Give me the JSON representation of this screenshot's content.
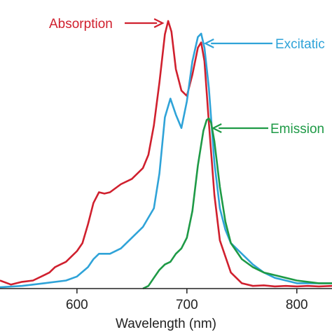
{
  "chart_data": {
    "type": "line",
    "xlabel": "Wavelength (nm)",
    "ylabel": "",
    "xlim": [
      530,
      832
    ],
    "ylim": [
      0,
      1.0
    ],
    "xticks": [
      600,
      700,
      800
    ],
    "grid": false,
    "annotations": [
      {
        "text": "Absorption",
        "series": "Absorption",
        "color": "#d0202e",
        "target_x": 683,
        "target_y": 1.0
      },
      {
        "text": "Excitatic",
        "series": "Excitation",
        "color": "#2fa3d8",
        "target_x": 713,
        "target_y": 0.953
      },
      {
        "text": "Emission",
        "series": "Emission",
        "color": "#1e9a46",
        "target_x": 720,
        "target_y": 0.636
      }
    ],
    "series": [
      {
        "name": "Absorption",
        "color": "#d0202e",
        "x": [
          530,
          540,
          550,
          560,
          570,
          575,
          580,
          585,
          590,
          595,
          600,
          605,
          610,
          615,
          620,
          625,
          630,
          640,
          650,
          660,
          665,
          670,
          675,
          680,
          683,
          686,
          690,
          695,
          700,
          705,
          710,
          713,
          716,
          720,
          725,
          730,
          740,
          750,
          760,
          770,
          780,
          790,
          800,
          810,
          820,
          832
        ],
        "y": [
          0.03,
          0.015,
          0.025,
          0.03,
          0.05,
          0.06,
          0.08,
          0.09,
          0.1,
          0.12,
          0.14,
          0.17,
          0.24,
          0.32,
          0.36,
          0.355,
          0.36,
          0.39,
          0.41,
          0.45,
          0.5,
          0.61,
          0.77,
          0.95,
          1.0,
          0.96,
          0.82,
          0.74,
          0.72,
          0.8,
          0.9,
          0.92,
          0.85,
          0.62,
          0.35,
          0.18,
          0.06,
          0.02,
          0.01,
          0.012,
          0.008,
          0.01,
          0.008,
          0.01,
          0.008,
          0.01
        ]
      },
      {
        "name": "Excitation",
        "color": "#2fa3d8",
        "x": [
          530,
          550,
          570,
          590,
          600,
          610,
          615,
          620,
          625,
          630,
          640,
          650,
          660,
          670,
          675,
          680,
          685,
          690,
          695,
          700,
          705,
          710,
          713,
          716,
          720,
          725,
          730,
          735,
          740,
          750,
          760,
          770,
          780,
          790,
          800,
          810,
          820,
          832
        ],
        "y": [
          0.005,
          0.01,
          0.02,
          0.03,
          0.045,
          0.08,
          0.11,
          0.13,
          0.13,
          0.13,
          0.15,
          0.19,
          0.23,
          0.3,
          0.43,
          0.64,
          0.71,
          0.65,
          0.6,
          0.7,
          0.85,
          0.94,
          0.953,
          0.9,
          0.75,
          0.47,
          0.3,
          0.22,
          0.17,
          0.13,
          0.09,
          0.06,
          0.04,
          0.03,
          0.02,
          0.02,
          0.02,
          0.02
        ]
      },
      {
        "name": "Emission",
        "color": "#1e9a46",
        "x": [
          660,
          665,
          670,
          675,
          680,
          685,
          690,
          695,
          700,
          705,
          710,
          715,
          718,
          720,
          722,
          725,
          730,
          735,
          740,
          750,
          760,
          770,
          780,
          790,
          800,
          810,
          820,
          832
        ],
        "y": [
          0.0,
          0.01,
          0.04,
          0.07,
          0.09,
          0.1,
          0.13,
          0.15,
          0.19,
          0.29,
          0.46,
          0.59,
          0.63,
          0.636,
          0.62,
          0.55,
          0.38,
          0.25,
          0.17,
          0.11,
          0.08,
          0.06,
          0.05,
          0.04,
          0.03,
          0.025,
          0.02,
          0.02
        ]
      }
    ]
  }
}
